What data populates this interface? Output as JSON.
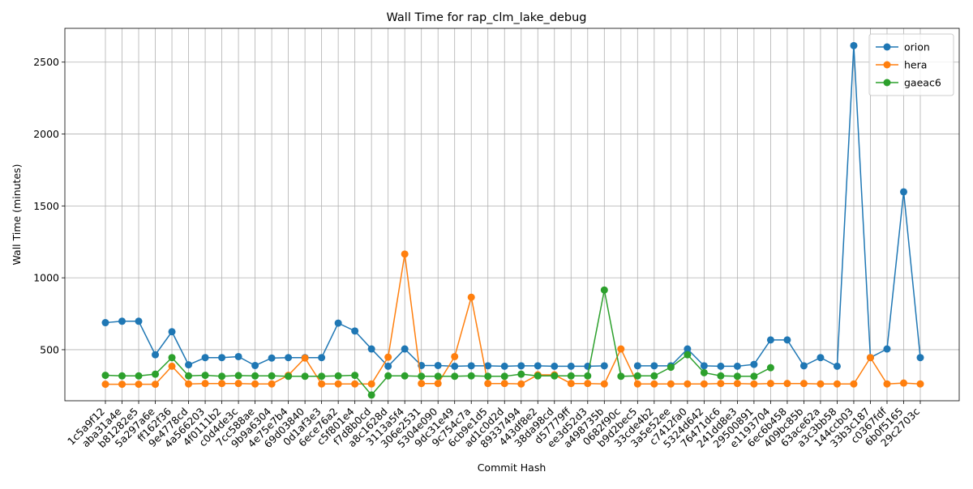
{
  "chart_data": {
    "type": "line",
    "title": "Wall Time for rap_clm_lake_debug",
    "xlabel": "Commit Hash",
    "ylabel": "Wall Time (minutes)",
    "ylim": [
      145,
      2735
    ],
    "yticks": [
      500,
      1000,
      1500,
      2000,
      2500
    ],
    "grid": true,
    "legend_position": "top-right",
    "categories": [
      "1c5a9f12",
      "aba31a4e",
      "b81282e5",
      "5a297a6e",
      "ff162f36",
      "9e4778cd",
      "4a566203",
      "4f0111b2",
      "c0d4de3c",
      "7cc588ae",
      "9b9a6304",
      "4e75e7b4",
      "69d03840",
      "0d1af3e3",
      "6ece76a2",
      "c5f801e4",
      "f7d8b0cd",
      "a8c1628d",
      "3113a5f4",
      "306e2531",
      "5304e090",
      "9dc31e49",
      "9c754c7a",
      "6cb9e1d5",
      "ad1c0d2d",
      "89337494",
      "443df8e2",
      "38da98cd",
      "d57779ff",
      "ee3d52d3",
      "a498735b",
      "0682f90c",
      "b9d2bec5",
      "33cde4b2",
      "3a5e52ee",
      "c7412fa0",
      "5324d642",
      "76471dc6",
      "241dd8e3",
      "29500891",
      "e1193704",
      "6ec6b458",
      "409bc85b",
      "63ace62a",
      "a3c3bb58",
      "144ccb03",
      "33b3c187",
      "c0367fdf",
      "6b0f5165",
      "29c2703c"
    ],
    "series": [
      {
        "name": "orion",
        "color": "#1f77b4",
        "values": [
          688,
          698,
          698,
          465,
          625,
          395,
          445,
          445,
          452,
          390,
          442,
          445,
          445,
          445,
          685,
          630,
          505,
          385,
          505,
          390,
          390,
          385,
          388,
          388,
          385,
          388,
          388,
          385,
          385,
          385,
          388,
          null,
          388,
          388,
          388,
          505,
          388,
          385,
          385,
          398,
          568,
          568,
          388,
          445,
          385,
          2615,
          445,
          505,
          1598,
          445
        ]
      },
      {
        "name": "hera",
        "color": "#ff7f0e",
        "values": [
          260,
          260,
          260,
          260,
          385,
          262,
          265,
          265,
          265,
          262,
          262,
          322,
          442,
          262,
          262,
          262,
          262,
          448,
          1165,
          265,
          265,
          452,
          865,
          265,
          265,
          262,
          325,
          325,
          265,
          265,
          262,
          505,
          262,
          262,
          262,
          262,
          262,
          265,
          265,
          262,
          265,
          265,
          265,
          262,
          262,
          262,
          445,
          262,
          268,
          262
        ]
      },
      {
        "name": "gaeac6",
        "color": "#2ca02c",
        "values": [
          322,
          318,
          318,
          330,
          445,
          318,
          322,
          315,
          320,
          318,
          318,
          315,
          315,
          315,
          318,
          322,
          185,
          318,
          318,
          315,
          315,
          315,
          318,
          315,
          315,
          330,
          318,
          318,
          318,
          318,
          915,
          315,
          318,
          318,
          378,
          465,
          340,
          318,
          315,
          315,
          375,
          null,
          null,
          null,
          null,
          null,
          null,
          null,
          null,
          null
        ]
      }
    ]
  }
}
